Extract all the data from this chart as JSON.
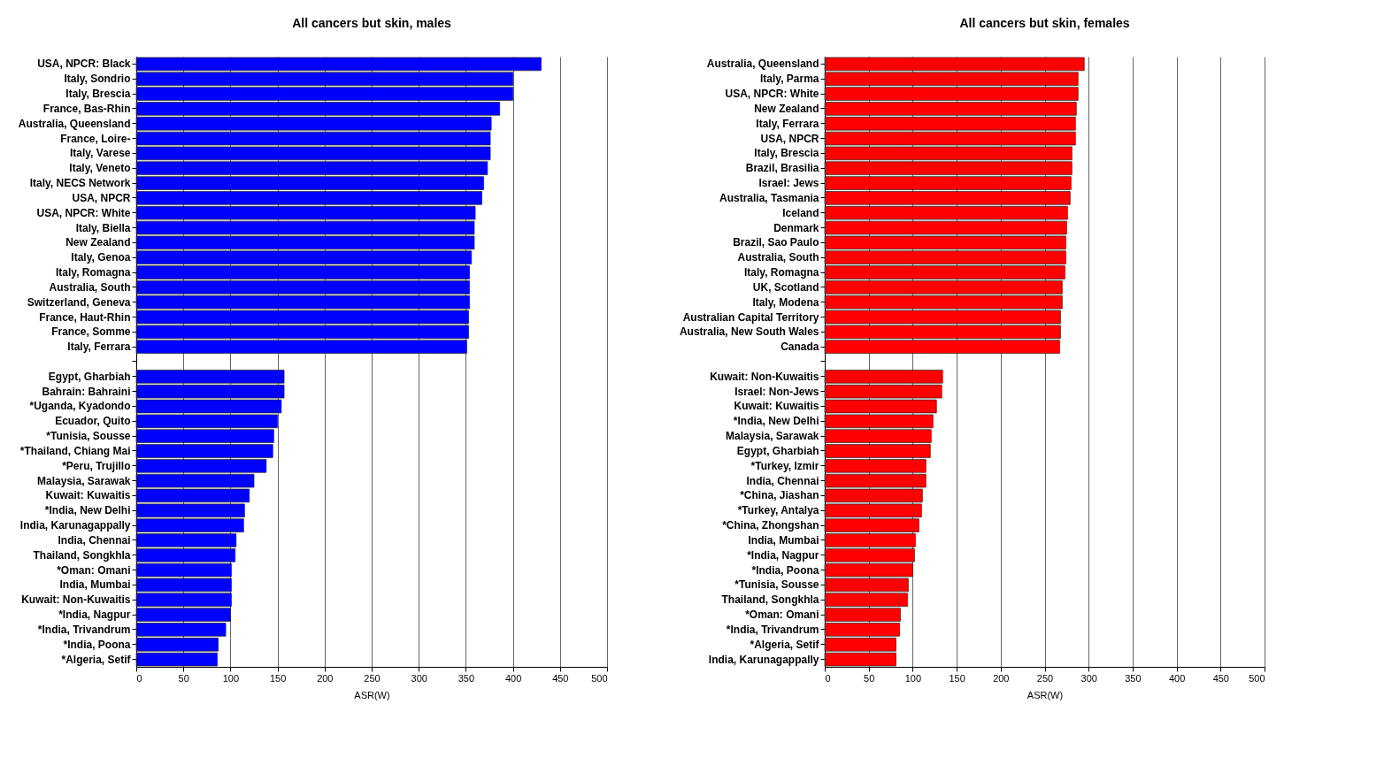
{
  "chart_data": [
    {
      "type": "bar",
      "orientation": "horizontal",
      "title": "All cancers but skin, males",
      "xlabel": "ASR(W)",
      "color": "#0000ff",
      "grid": "x",
      "xlim": [
        0,
        500
      ],
      "xticks": [
        0,
        50,
        100,
        150,
        200,
        250,
        300,
        350,
        400,
        450,
        500
      ],
      "categories": [
        "USA, NPCR: Black",
        "Italy, Sondrio",
        "Italy, Brescia",
        "France, Bas-Rhin",
        "Australia, Queensland",
        "France, Loire-",
        "Italy, Varese",
        "Italy, Veneto",
        "Italy, NECS Network",
        "USA, NPCR",
        "USA, NPCR: White",
        "Italy, Biella",
        "New Zealand",
        "Italy, Genoa",
        "Italy, Romagna",
        "Australia, South",
        "Switzerland, Geneva",
        "France, Haut-Rhin",
        "France, Somme",
        "Italy, Ferrara",
        null,
        "Egypt, Gharbiah",
        "Bahrain: Bahraini",
        "*Uganda, Kyadondo",
        "Ecuador, Quito",
        "*Tunisia, Sousse",
        "*Thailand, Chiang Mai",
        "*Peru, Trujillo",
        "Malaysia, Sarawak",
        "Kuwait: Kuwaitis",
        "*India, New Delhi",
        "India, Karunagappally",
        "India, Chennai",
        "Thailand, Songkhla",
        "*Oman: Omani",
        "India, Mumbai",
        "Kuwait: Non-Kuwaitis",
        "*India, Nagpur",
        "*India, Trivandrum",
        "*India, Poona",
        "*Algeria, Setif"
      ],
      "values": [
        430,
        400,
        400,
        386,
        377,
        376,
        376,
        373,
        369,
        367,
        360,
        359,
        359,
        356,
        354,
        354,
        354,
        353,
        353,
        351,
        null,
        157,
        157,
        154,
        150,
        146,
        145,
        138,
        125,
        120,
        115,
        114,
        106,
        105,
        101,
        101,
        101,
        100,
        95,
        87,
        86
      ]
    },
    {
      "type": "bar",
      "orientation": "horizontal",
      "title": "All cancers but skin, females",
      "xlabel": "ASR(W)",
      "color": "#ff0000",
      "grid": "x",
      "xlim": [
        0,
        500
      ],
      "xticks": [
        0,
        50,
        100,
        150,
        200,
        250,
        300,
        350,
        400,
        450,
        500
      ],
      "categories": [
        "Australia, Queensland",
        "Italy, Parma",
        "USA, NPCR: White",
        "New Zealand",
        "Italy, Ferrara",
        "USA, NPCR",
        "Italy, Brescia",
        "Brazil, Brasilia",
        "Israel: Jews",
        "Australia, Tasmania",
        "Iceland",
        "Denmark",
        "Brazil, Sao Paulo",
        "Australia, South",
        "Italy, Romagna",
        "UK, Scotland",
        "Italy, Modena",
        "Australian Capital Territory",
        "Australia, New South Wales",
        "Canada",
        null,
        "Kuwait: Non-Kuwaitis",
        "Israel: Non-Jews",
        "Kuwait: Kuwaitis",
        "*India, New Delhi",
        "Malaysia, Sarawak",
        "Egypt, Gharbiah",
        "*Turkey, Izmir",
        "India, Chennai",
        "*China, Jiashan",
        "*Turkey, Antalya",
        "*China, Zhongshan",
        "India, Mumbai",
        "*India, Nagpur",
        "*India, Poona",
        "*Tunisia, Sousse",
        "Thailand, Songkhla",
        "*Oman: Omani",
        "*India, Trivandrum",
        "*Algeria, Setif",
        "India, Karunagappally"
      ],
      "values": [
        295,
        288,
        288,
        286,
        285,
        285,
        281,
        281,
        280,
        279,
        276,
        275,
        274,
        274,
        273,
        270,
        270,
        268,
        268,
        267,
        null,
        134,
        133,
        127,
        123,
        121,
        120,
        115,
        115,
        111,
        110,
        107,
        103,
        102,
        100,
        95,
        94,
        86,
        85,
        81,
        81
      ]
    }
  ]
}
